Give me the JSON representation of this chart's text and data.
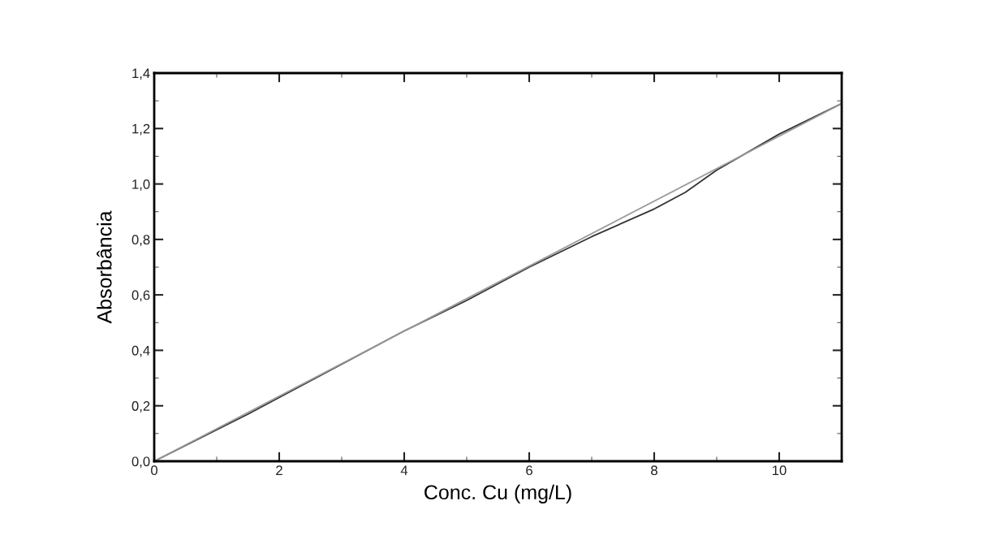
{
  "chart_data": {
    "type": "line",
    "xlabel": "Conc. Cu (mg/L)",
    "ylabel": "Absorbância",
    "series": [
      {
        "color": "#333333",
        "x": [
          0,
          1.5,
          3,
          4,
          5,
          6,
          7,
          8,
          8.5,
          9,
          10,
          11
        ],
        "values": [
          0,
          0.17,
          0.35,
          0.47,
          0.58,
          0.7,
          0.81,
          0.91,
          0.97,
          1.05,
          1.18,
          1.29
        ]
      },
      {
        "color": "#9a9a9a",
        "x": [
          0,
          11
        ],
        "values": [
          0,
          1.29
        ]
      }
    ],
    "xlim": [
      0,
      11
    ],
    "xticks": [
      0,
      2,
      4,
      6,
      8,
      10
    ],
    "ylim": [
      0,
      1.4
    ],
    "yticks": [
      {
        "value": 0,
        "label": "0,0"
      },
      {
        "value": 0.2,
        "label": "0,2"
      },
      {
        "value": 0.4,
        "label": "0,4"
      },
      {
        "value": 0.6,
        "label": "0,6"
      },
      {
        "value": 0.8,
        "label": "0,8"
      },
      {
        "value": 1.0,
        "label": "1,0"
      },
      {
        "value": 1.2,
        "label": "1,2"
      },
      {
        "value": 1.4,
        "label": "1,4"
      }
    ],
    "grid": false,
    "marker": "none",
    "line_style": "solid"
  }
}
